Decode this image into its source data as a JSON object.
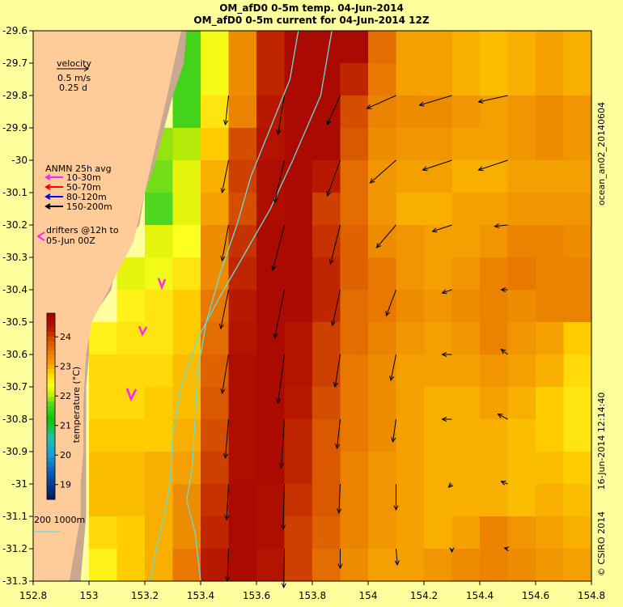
{
  "title": {
    "line1": "OM_afD0 0-5m temp. 04-Jun-2014",
    "line2": "OM_afD0 0-5m current for 04-Jun-2014 12Z"
  },
  "map": {
    "lon_range": [
      152.8,
      154.8
    ],
    "lat_range": [
      -31.3,
      -29.6
    ],
    "x_ticks": [
      "152.8",
      "153",
      "153.2",
      "153.4",
      "153.6",
      "153.8",
      "154",
      "154.2",
      "154.4",
      "154.6",
      "154.8"
    ],
    "y_ticks": [
      "-29.6",
      "-29.7",
      "-29.8",
      "-29.9",
      "-30",
      "-30.1",
      "-30.2",
      "-30.3",
      "-30.4",
      "-30.5",
      "-30.6",
      "-30.7",
      "-30.8",
      "-30.9",
      "-31",
      "-31.1",
      "-31.2",
      "-31.3"
    ],
    "colors": {
      "land": "#ffcc99",
      "shelf": "#c8a890",
      "contour": "#66dddd",
      "background": "#ffff9e"
    }
  },
  "legend": {
    "velocity_label": "velocity",
    "velocity_scale": "0.5 m/s",
    "velocity_time": "0.25 d",
    "anmn_title": "ANMN 25h avg",
    "anmn_items": [
      {
        "label": "10-30m",
        "color": "#ff22ff"
      },
      {
        "label": "50-70m",
        "color": "#ff0000"
      },
      {
        "label": "80-120m",
        "color": "#0000ff"
      },
      {
        "label": "150-200m",
        "color": "#000000"
      }
    ],
    "drifters_line1": "drifters @12h to",
    "drifters_line2": "05-Jun 00Z",
    "isobaths": "200  1000m"
  },
  "colorbar": {
    "label": "temperature (°C)",
    "ticks": [
      "19",
      "20",
      "21",
      "22",
      "23",
      "24"
    ],
    "range": [
      18.5,
      24.8
    ]
  },
  "side_text": {
    "run_id": "ocean_an02_20140604",
    "timestamp": "16-Jun-2014 12:14:40",
    "credit": "© CSIRO 2014"
  },
  "chart_data": {
    "type": "heatmap",
    "description_units": "sea surface temperature (0-5m) in degC on 0.1 degree grid; current vectors in m/s",
    "lon_bins": [
      152.8,
      152.9,
      153.0,
      153.1,
      153.2,
      153.3,
      153.4,
      153.5,
      153.6,
      153.7,
      153.8,
      153.9,
      154.0,
      154.1,
      154.2,
      154.3,
      154.4,
      154.5,
      154.6,
      154.7,
      154.8
    ],
    "lat_bins": [
      -29.6,
      -29.7,
      -29.8,
      -29.9,
      -30.0,
      -30.1,
      -30.2,
      -30.3,
      -30.4,
      -30.5,
      -30.6,
      -30.7,
      -30.8,
      -30.9,
      -31.0,
      -31.1,
      -31.2,
      -31.3
    ],
    "temperature_rows": [
      [
        null,
        null,
        null,
        null,
        null,
        21.6,
        22.3,
        23.3,
        24.2,
        24.6,
        24.6,
        24.6,
        23.6,
        23.1,
        23.1,
        23.0,
        22.9,
        23.0,
        23.1,
        23.0
      ],
      [
        null,
        null,
        null,
        null,
        null,
        21.6,
        22.3,
        23.3,
        24.2,
        24.6,
        24.6,
        24.2,
        23.5,
        23.1,
        23.1,
        23.0,
        22.9,
        23.0,
        23.1,
        23.0
      ],
      [
        null,
        null,
        null,
        null,
        null,
        21.6,
        22.6,
        23.4,
        24.3,
        24.6,
        24.6,
        23.9,
        23.4,
        23.3,
        23.3,
        23.2,
        23.1,
        23.2,
        23.3,
        23.2
      ],
      [
        null,
        null,
        null,
        null,
        21.9,
        22.0,
        22.8,
        23.9,
        24.4,
        24.6,
        24.6,
        23.8,
        23.3,
        23.2,
        23.2,
        23.1,
        23.1,
        23.2,
        23.3,
        23.2
      ],
      [
        null,
        null,
        null,
        null,
        21.8,
        22.2,
        23.0,
        24.0,
        24.5,
        24.6,
        24.3,
        23.6,
        23.2,
        23.1,
        23.1,
        23.0,
        23.0,
        23.1,
        23.1,
        23.1
      ],
      [
        null,
        null,
        null,
        null,
        21.7,
        22.2,
        23.1,
        23.9,
        24.5,
        24.6,
        24.0,
        23.6,
        23.2,
        23.0,
        23.0,
        23.1,
        23.1,
        23.2,
        23.2,
        23.2
      ],
      [
        null,
        null,
        null,
        null,
        22.2,
        22.4,
        23.3,
        24.1,
        24.6,
        24.6,
        24.1,
        23.7,
        23.3,
        23.2,
        23.1,
        23.1,
        23.2,
        23.4,
        23.4,
        23.3
      ],
      [
        null,
        null,
        null,
        22.2,
        22.3,
        22.6,
        23.3,
        24.2,
        24.6,
        24.6,
        24.2,
        23.7,
        23.5,
        23.2,
        23.1,
        23.2,
        23.4,
        23.5,
        23.4,
        23.4
      ],
      [
        null,
        null,
        null,
        22.5,
        22.6,
        22.8,
        23.5,
        24.3,
        24.6,
        24.6,
        24.2,
        23.6,
        23.5,
        23.3,
        23.2,
        23.3,
        23.4,
        23.3,
        23.4,
        23.4
      ],
      [
        null,
        null,
        22.5,
        22.6,
        22.6,
        22.8,
        23.6,
        24.4,
        24.6,
        24.4,
        24.0,
        23.6,
        23.4,
        23.2,
        23.1,
        23.2,
        23.4,
        23.2,
        23.1,
        22.8
      ],
      [
        null,
        null,
        22.7,
        22.7,
        22.7,
        22.9,
        23.7,
        24.5,
        24.6,
        24.4,
        24.0,
        23.5,
        23.3,
        23.1,
        23.1,
        23.1,
        23.2,
        23.1,
        23.0,
        22.7
      ],
      [
        null,
        null,
        22.7,
        22.7,
        22.8,
        22.9,
        23.8,
        24.5,
        24.6,
        24.3,
        23.9,
        23.5,
        23.3,
        23.1,
        23.0,
        23.0,
        23.1,
        23.0,
        22.8,
        22.6
      ],
      [
        null,
        null,
        22.8,
        22.8,
        22.8,
        23.0,
        23.9,
        24.5,
        24.6,
        24.2,
        23.8,
        23.5,
        23.3,
        23.1,
        23.0,
        23.0,
        23.0,
        22.9,
        22.8,
        22.6
      ],
      [
        null,
        null,
        22.9,
        22.9,
        23.0,
        23.1,
        24.0,
        24.5,
        24.6,
        24.2,
        23.8,
        23.4,
        23.2,
        23.1,
        23.0,
        23.0,
        23.0,
        22.9,
        22.9,
        22.8
      ],
      [
        null,
        null,
        22.9,
        22.9,
        23.0,
        23.3,
        24.1,
        24.6,
        24.5,
        24.1,
        23.8,
        23.4,
        23.2,
        23.1,
        23.0,
        23.0,
        23.0,
        22.9,
        23.0,
        22.9
      ],
      [
        null,
        null,
        22.7,
        22.8,
        23.0,
        23.3,
        24.2,
        24.6,
        24.5,
        24.0,
        23.7,
        23.4,
        23.2,
        23.1,
        23.0,
        23.1,
        23.4,
        23.2,
        23.1,
        23.0
      ],
      [
        null,
        null,
        22.5,
        22.8,
        23.0,
        23.5,
        24.3,
        24.6,
        24.4,
        24.0,
        23.6,
        23.3,
        23.1,
        23.1,
        23.2,
        23.3,
        23.4,
        23.3,
        23.2,
        23.1
      ]
    ],
    "land_boundary": [
      [
        153.35,
        -29.6
      ],
      [
        153.34,
        -29.7
      ],
      [
        153.3,
        -29.8
      ],
      [
        153.27,
        -29.9
      ],
      [
        153.24,
        -30.0
      ],
      [
        153.2,
        -30.1
      ],
      [
        153.18,
        -30.2
      ],
      [
        153.1,
        -30.3
      ],
      [
        153.08,
        -30.4
      ],
      [
        153.0,
        -30.5
      ],
      [
        153.0,
        -30.6
      ],
      [
        152.99,
        -30.7
      ],
      [
        152.99,
        -30.8
      ],
      [
        152.99,
        -30.9
      ],
      [
        152.99,
        -31.0
      ],
      [
        152.99,
        -31.1
      ],
      [
        152.98,
        -31.2
      ],
      [
        152.97,
        -31.3
      ]
    ],
    "shelf_boundary": [
      [
        153.33,
        -29.6
      ],
      [
        153.28,
        -29.8
      ],
      [
        153.24,
        -29.95
      ],
      [
        153.2,
        -30.1
      ],
      [
        153.16,
        -30.25
      ],
      [
        153.1,
        -30.35
      ],
      [
        153.04,
        -30.45
      ],
      [
        153.01,
        -30.5
      ],
      [
        152.99,
        -30.6
      ],
      [
        152.98,
        -30.75
      ],
      [
        152.98,
        -30.9
      ],
      [
        152.97,
        -31.0
      ],
      [
        152.97,
        -31.1
      ],
      [
        152.95,
        -31.2
      ],
      [
        152.93,
        -31.3
      ]
    ],
    "isobath_200m": [
      [
        153.75,
        -29.6
      ],
      [
        153.72,
        -29.75
      ],
      [
        153.65,
        -29.9
      ],
      [
        153.58,
        -30.05
      ],
      [
        153.53,
        -30.2
      ],
      [
        153.47,
        -30.35
      ],
      [
        153.42,
        -30.5
      ],
      [
        153.39,
        -30.65
      ],
      [
        153.38,
        -30.8
      ],
      [
        153.37,
        -30.95
      ],
      [
        153.35,
        -31.05
      ],
      [
        153.38,
        -31.15
      ],
      [
        153.4,
        -31.3
      ]
    ],
    "isobath_1000m": [
      [
        153.87,
        -29.6
      ],
      [
        153.83,
        -29.8
      ],
      [
        153.73,
        -30.0
      ],
      [
        153.65,
        -30.15
      ],
      [
        153.55,
        -30.3
      ],
      [
        153.47,
        -30.42
      ],
      [
        153.39,
        -30.55
      ],
      [
        153.33,
        -30.7
      ],
      [
        153.3,
        -30.85
      ],
      [
        153.29,
        -31.0
      ],
      [
        153.27,
        -31.1
      ],
      [
        153.24,
        -31.2
      ],
      [
        153.22,
        -31.3
      ]
    ],
    "current_vectors": [
      {
        "lon": 153.5,
        "lat": -29.8,
        "u": -0.05,
        "v": -0.45
      },
      {
        "lon": 153.5,
        "lat": -30.0,
        "u": -0.1,
        "v": -0.5
      },
      {
        "lon": 153.5,
        "lat": -30.2,
        "u": -0.1,
        "v": -0.55
      },
      {
        "lon": 153.5,
        "lat": -30.4,
        "u": -0.12,
        "v": -0.6
      },
      {
        "lon": 153.5,
        "lat": -30.6,
        "u": -0.1,
        "v": -0.6
      },
      {
        "lon": 153.5,
        "lat": -30.8,
        "u": -0.05,
        "v": -0.6
      },
      {
        "lon": 153.5,
        "lat": -31.0,
        "u": -0.03,
        "v": -0.55
      },
      {
        "lon": 153.5,
        "lat": -31.2,
        "u": -0.02,
        "v": -0.5
      },
      {
        "lon": 153.7,
        "lat": -29.8,
        "u": -0.1,
        "v": -0.6
      },
      {
        "lon": 153.7,
        "lat": -30.0,
        "u": -0.15,
        "v": -0.65
      },
      {
        "lon": 153.7,
        "lat": -30.2,
        "u": -0.18,
        "v": -0.7
      },
      {
        "lon": 153.7,
        "lat": -30.4,
        "u": -0.15,
        "v": -0.75
      },
      {
        "lon": 153.7,
        "lat": -30.6,
        "u": -0.1,
        "v": -0.75
      },
      {
        "lon": 153.7,
        "lat": -30.8,
        "u": -0.05,
        "v": -0.75
      },
      {
        "lon": 153.7,
        "lat": -31.0,
        "u": -0.02,
        "v": -0.7
      },
      {
        "lon": 153.7,
        "lat": -31.2,
        "u": -0.01,
        "v": -0.6
      },
      {
        "lon": 153.9,
        "lat": -29.8,
        "u": -0.2,
        "v": -0.45
      },
      {
        "lon": 153.9,
        "lat": -30.0,
        "u": -0.2,
        "v": -0.55
      },
      {
        "lon": 153.9,
        "lat": -30.2,
        "u": -0.15,
        "v": -0.6
      },
      {
        "lon": 153.9,
        "lat": -30.4,
        "u": -0.12,
        "v": -0.55
      },
      {
        "lon": 153.9,
        "lat": -30.6,
        "u": -0.08,
        "v": -0.5
      },
      {
        "lon": 153.9,
        "lat": -30.8,
        "u": -0.05,
        "v": -0.45
      },
      {
        "lon": 153.9,
        "lat": -31.0,
        "u": -0.02,
        "v": -0.45
      },
      {
        "lon": 153.9,
        "lat": -31.2,
        "u": 0.0,
        "v": -0.3
      },
      {
        "lon": 154.1,
        "lat": -29.8,
        "u": -0.45,
        "v": -0.2
      },
      {
        "lon": 154.1,
        "lat": -30.0,
        "u": -0.4,
        "v": -0.35
      },
      {
        "lon": 154.1,
        "lat": -30.2,
        "u": -0.3,
        "v": -0.35
      },
      {
        "lon": 154.1,
        "lat": -30.4,
        "u": -0.15,
        "v": -0.4
      },
      {
        "lon": 154.1,
        "lat": -30.6,
        "u": -0.08,
        "v": -0.4
      },
      {
        "lon": 154.1,
        "lat": -30.8,
        "u": -0.05,
        "v": -0.35
      },
      {
        "lon": 154.1,
        "lat": -31.0,
        "u": 0.0,
        "v": -0.4
      },
      {
        "lon": 154.1,
        "lat": -31.2,
        "u": 0.02,
        "v": -0.25
      },
      {
        "lon": 154.3,
        "lat": -29.8,
        "u": -0.5,
        "v": -0.15
      },
      {
        "lon": 154.3,
        "lat": -30.0,
        "u": -0.45,
        "v": -0.15
      },
      {
        "lon": 154.3,
        "lat": -30.2,
        "u": -0.3,
        "v": -0.1
      },
      {
        "lon": 154.3,
        "lat": -30.4,
        "u": -0.15,
        "v": -0.05
      },
      {
        "lon": 154.3,
        "lat": -30.6,
        "u": -0.15,
        "v": 0.0
      },
      {
        "lon": 154.3,
        "lat": -30.8,
        "u": -0.15,
        "v": 0.0
      },
      {
        "lon": 154.3,
        "lat": -31.0,
        "u": -0.05,
        "v": -0.05
      },
      {
        "lon": 154.3,
        "lat": -31.2,
        "u": 0.0,
        "v": -0.05
      },
      {
        "lon": 154.5,
        "lat": -29.8,
        "u": -0.45,
        "v": -0.1
      },
      {
        "lon": 154.5,
        "lat": -30.0,
        "u": -0.45,
        "v": -0.15
      },
      {
        "lon": 154.5,
        "lat": -30.2,
        "u": -0.2,
        "v": -0.02
      },
      {
        "lon": 154.5,
        "lat": -30.4,
        "u": -0.1,
        "v": 0.0
      },
      {
        "lon": 154.5,
        "lat": -30.6,
        "u": -0.1,
        "v": 0.08
      },
      {
        "lon": 154.5,
        "lat": -30.8,
        "u": -0.15,
        "v": 0.08
      },
      {
        "lon": 154.5,
        "lat": -31.0,
        "u": -0.1,
        "v": 0.04
      },
      {
        "lon": 154.5,
        "lat": -31.2,
        "u": -0.05,
        "v": 0.01
      }
    ]
  }
}
